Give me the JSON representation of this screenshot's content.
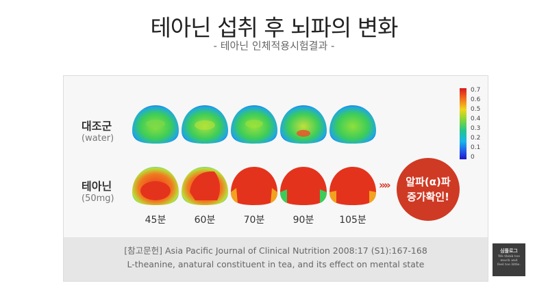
{
  "title": "테아닌 섭취 후 뇌파의 변화",
  "subtitle": "- 테아닌 인체적용시험결과 -",
  "groups": [
    {
      "name": "대조군",
      "sub": "(water)"
    },
    {
      "name": "테아닌",
      "sub": "(50mg)"
    }
  ],
  "time_labels": [
    "45분",
    "60분",
    "70분",
    "90분",
    "105분"
  ],
  "badge": {
    "line1": "알파(α)파",
    "line2": "증가확인!"
  },
  "arrows": "»»",
  "colorbar": {
    "ticks": [
      "0.7",
      "0.6",
      "0.5",
      "0.4",
      "0.3",
      "0.2",
      "0.1",
      "0"
    ]
  },
  "reference": {
    "line1": "[참고문헌] Asia Pacific Journal of Clinical Nutrition 2008:17 (S1):167-168",
    "line2": "L-theanine, anatural constituent in tea, and its effect on mental state"
  },
  "stamp": {
    "title": "심플로그",
    "lines": [
      "We think too",
      "much and",
      "feel too little."
    ]
  }
}
